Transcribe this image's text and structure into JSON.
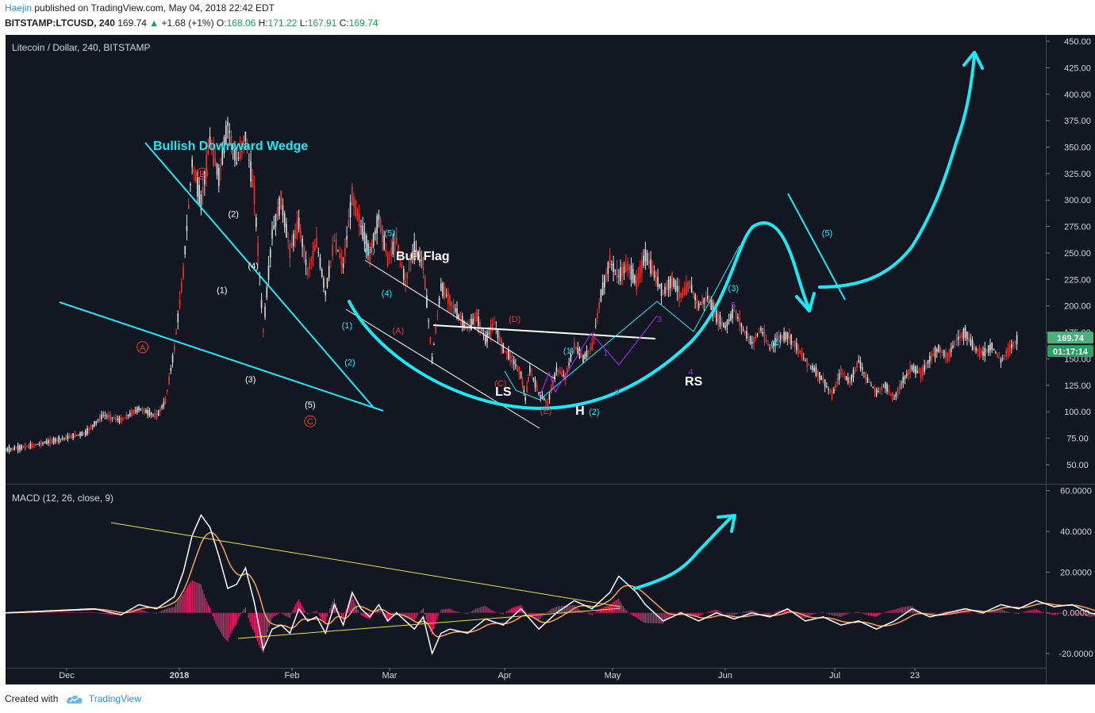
{
  "header": {
    "author": "Haejin",
    "published_text": "published on TradingView.com, May 04, 2018 22:42 EDT",
    "symbol": "BITSTAMP:LTCUSD, 240",
    "last": "169.74",
    "change_arrow": "▲",
    "change": "+1.68 (+1%)",
    "ohlc": [
      {
        "label": "O:",
        "value": "168.06"
      },
      {
        "label": "H:",
        "value": "171.22"
      },
      {
        "label": "L:",
        "value": "167.91"
      },
      {
        "label": "C:",
        "value": "169.74"
      }
    ]
  },
  "footer": {
    "created_with": "Created with",
    "brand": "TradingView",
    "logo_icon": "tradingview-cloud-icon"
  },
  "colors": {
    "cyan": "#1de9f5",
    "red_label": "#e53935",
    "purple": "#9c27d9",
    "macd_hist": "#f0266f",
    "macd_signal": "#f5a25d",
    "trendline_yellow": "#e8e23a",
    "price_tag": "#4caf7c",
    "price_tag_dark": "#26a269",
    "wedge_title": "#1de9f5"
  },
  "chart_data": [
    {
      "type": "line",
      "pane": "price",
      "title": "Litecoin / Dollar, 240, BITSTAMP",
      "x_axis_labels": [
        "Dec",
        "2018",
        "Feb",
        "Mar",
        "Apr",
        "May",
        "Jun",
        "Jul",
        "23"
      ],
      "y_ticks": [
        50,
        75,
        100,
        125,
        150,
        175,
        200,
        225,
        250,
        275,
        300,
        325,
        350,
        375,
        400,
        425,
        450
      ],
      "ylim": [
        32,
        456
      ],
      "last_price": "169.74",
      "countdown": "01:17:14",
      "price_path": [
        [
          0,
          64
        ],
        [
          6,
          68
        ],
        [
          12,
          74
        ],
        [
          18,
          80
        ],
        [
          22,
          97
        ],
        [
          26,
          92
        ],
        [
          30,
          103
        ],
        [
          34,
          96
        ],
        [
          36,
          110
        ],
        [
          38,
          160
        ],
        [
          40,
          232
        ],
        [
          42,
          335
        ],
        [
          44,
          298
        ],
        [
          46,
          356
        ],
        [
          48,
          322
        ],
        [
          50,
          372
        ],
        [
          52,
          335
        ],
        [
          54,
          360
        ],
        [
          56,
          305
        ],
        [
          58,
          176
        ],
        [
          60,
          268
        ],
        [
          62,
          300
        ],
        [
          64,
          252
        ],
        [
          66,
          278
        ],
        [
          68,
          232
        ],
        [
          70,
          260
        ],
        [
          72,
          212
        ],
        [
          74,
          262
        ],
        [
          76,
          238
        ],
        [
          78,
          304
        ],
        [
          80,
          275
        ],
        [
          82,
          248
        ],
        [
          84,
          284
        ],
        [
          86,
          244
        ],
        [
          88,
          262
        ],
        [
          90,
          222
        ],
        [
          92,
          255
        ],
        [
          94,
          240
        ],
        [
          96,
          150
        ],
        [
          98,
          218
        ],
        [
          100,
          205
        ],
        [
          102,
          190
        ],
        [
          104,
          178
        ],
        [
          106,
          190
        ],
        [
          108,
          168
        ],
        [
          110,
          183
        ],
        [
          112,
          160
        ],
        [
          114,
          150
        ],
        [
          116,
          135
        ],
        [
          117,
          112
        ],
        [
          118,
          140
        ],
        [
          120,
          118
        ],
        [
          122,
          108
        ],
        [
          124,
          140
        ],
        [
          126,
          133
        ],
        [
          128,
          163
        ],
        [
          130,
          150
        ],
        [
          132,
          162
        ],
        [
          134,
          210
        ],
        [
          136,
          242
        ],
        [
          138,
          228
        ],
        [
          140,
          238
        ],
        [
          142,
          222
        ],
        [
          144,
          248
        ],
        [
          146,
          230
        ],
        [
          148,
          212
        ],
        [
          150,
          225
        ],
        [
          152,
          210
        ],
        [
          154,
          220
        ],
        [
          156,
          200
        ],
        [
          158,
          208
        ],
        [
          160,
          190
        ],
        [
          162,
          180
        ],
        [
          164,
          196
        ],
        [
          166,
          178
        ],
        [
          168,
          165
        ],
        [
          170,
          178
        ],
        [
          172,
          160
        ],
        [
          174,
          170
        ],
        [
          176,
          172
        ],
        [
          178,
          162
        ],
        [
          180,
          148
        ],
        [
          182,
          140
        ],
        [
          184,
          130
        ],
        [
          186,
          115
        ],
        [
          188,
          138
        ],
        [
          190,
          128
        ],
        [
          192,
          148
        ],
        [
          194,
          130
        ],
        [
          196,
          118
        ],
        [
          198,
          125
        ],
        [
          200,
          112
        ],
        [
          202,
          130
        ],
        [
          204,
          142
        ],
        [
          206,
          135
        ],
        [
          208,
          150
        ],
        [
          210,
          160
        ],
        [
          212,
          152
        ],
        [
          214,
          168
        ],
        [
          216,
          175
        ],
        [
          218,
          160
        ],
        [
          220,
          155
        ],
        [
          222,
          162
        ],
        [
          224,
          148
        ],
        [
          226,
          160
        ],
        [
          228,
          170
        ]
      ],
      "wave_labels": [
        {
          "text": "A",
          "x": 58,
          "y": 158,
          "color": "red_label",
          "circled": true
        },
        {
          "text": "B",
          "x": 79,
          "y": 322,
          "color": "red_label",
          "circled": true
        },
        {
          "text": "C",
          "x": 117,
          "y": 88,
          "color": "red_label",
          "circled": true
        },
        {
          "text": "(2)",
          "x": 90,
          "y": 284,
          "color": "white"
        },
        {
          "text": "(1)",
          "x": 86,
          "y": 212,
          "color": "white"
        },
        {
          "text": "(4)",
          "x": 97,
          "y": 235,
          "color": "white"
        },
        {
          "text": "(3)",
          "x": 96,
          "y": 128,
          "color": "white"
        },
        {
          "text": "(5)",
          "x": 117,
          "y": 104,
          "color": "white"
        },
        {
          "text": "(1)",
          "x": 130,
          "y": 179,
          "color": "cyan"
        },
        {
          "text": "(2)",
          "x": 131,
          "y": 144,
          "color": "cyan"
        },
        {
          "text": "(3)",
          "x": 138,
          "y": 250,
          "color": "cyan"
        },
        {
          "text": "(4)",
          "x": 144,
          "y": 209,
          "color": "cyan"
        },
        {
          "text": "(5)",
          "x": 145,
          "y": 266,
          "color": "cyan"
        },
        {
          "text": "(A)",
          "x": 148,
          "y": 174,
          "color": "red_label"
        },
        {
          "text": "(B)",
          "x": 154,
          "y": 245,
          "color": "red_label"
        },
        {
          "text": "(C)",
          "x": 184,
          "y": 124,
          "color": "red_label"
        },
        {
          "text": "(D)",
          "x": 189,
          "y": 185,
          "color": "red_label"
        },
        {
          "text": "(E)",
          "x": 200,
          "y": 98,
          "color": "red_label"
        },
        {
          "text": "LS",
          "x": 185,
          "y": 115,
          "color": "white",
          "big": true
        },
        {
          "text": "H",
          "x": 212,
          "y": 97,
          "color": "white",
          "big": true
        },
        {
          "text": "RS",
          "x": 252,
          "y": 125,
          "color": "white",
          "big": true
        },
        {
          "text": "(1)",
          "x": 208,
          "y": 155,
          "color": "cyan"
        },
        {
          "text": "(2)",
          "x": 217,
          "y": 97,
          "color": "cyan"
        },
        {
          "text": "(3)",
          "x": 266,
          "y": 214,
          "color": "cyan"
        },
        {
          "text": "(4)",
          "x": 281,
          "y": 162,
          "color": "cyan"
        },
        {
          "text": "(5)",
          "x": 299,
          "y": 266,
          "color": "cyan"
        },
        {
          "text": "1",
          "x": 221,
          "y": 153,
          "color": "purple"
        },
        {
          "text": "2",
          "x": 225,
          "y": 116,
          "color": "purple"
        },
        {
          "text": "3",
          "x": 240,
          "y": 185,
          "color": "purple"
        },
        {
          "text": "4",
          "x": 251,
          "y": 135,
          "color": "purple"
        },
        {
          "text": "5",
          "x": 266,
          "y": 198,
          "color": "purple"
        }
      ],
      "annotations": [
        {
          "text": "Bullish Downward Wedge",
          "color": "cyan"
        },
        {
          "text": "Bull Flag",
          "color": "white"
        }
      ]
    },
    {
      "type": "line",
      "pane": "indicator",
      "title": "MACD (12, 26, close, 9)",
      "y_ticks": [
        -20,
        0,
        20,
        40,
        60
      ],
      "y_tick_labels": [
        "-20.0000",
        "0.0000",
        "20.0000",
        "40.0000",
        "60.0000"
      ],
      "ylim": [
        -27,
        63
      ],
      "macd_path": [
        [
          0,
          0
        ],
        [
          10,
          1
        ],
        [
          20,
          2
        ],
        [
          26,
          -1
        ],
        [
          30,
          4
        ],
        [
          34,
          2
        ],
        [
          38,
          8
        ],
        [
          40,
          20
        ],
        [
          42,
          38
        ],
        [
          44,
          48
        ],
        [
          46,
          42
        ],
        [
          48,
          28
        ],
        [
          50,
          12
        ],
        [
          52,
          14
        ],
        [
          54,
          22
        ],
        [
          56,
          5
        ],
        [
          58,
          -18
        ],
        [
          60,
          -8
        ],
        [
          62,
          -6
        ],
        [
          64,
          -10
        ],
        [
          66,
          2
        ],
        [
          68,
          -4
        ],
        [
          70,
          -2
        ],
        [
          72,
          -10
        ],
        [
          74,
          4
        ],
        [
          76,
          -6
        ],
        [
          78,
          10
        ],
        [
          80,
          2
        ],
        [
          82,
          -2
        ],
        [
          84,
          4
        ],
        [
          86,
          -4
        ],
        [
          88,
          0
        ],
        [
          92,
          -8
        ],
        [
          94,
          -2
        ],
        [
          96,
          -20
        ],
        [
          98,
          -10
        ],
        [
          100,
          -8
        ],
        [
          104,
          -10
        ],
        [
          108,
          -3
        ],
        [
          112,
          -6
        ],
        [
          116,
          2
        ],
        [
          120,
          -8
        ],
        [
          124,
          0
        ],
        [
          128,
          6
        ],
        [
          132,
          2
        ],
        [
          136,
          10
        ],
        [
          138,
          18
        ],
        [
          140,
          14
        ],
        [
          142,
          10
        ],
        [
          144,
          4
        ],
        [
          148,
          -4
        ],
        [
          152,
          0
        ],
        [
          156,
          -4
        ],
        [
          160,
          0
        ],
        [
          164,
          -3
        ],
        [
          168,
          0
        ],
        [
          172,
          -2
        ],
        [
          176,
          2
        ],
        [
          180,
          -4
        ],
        [
          184,
          -2
        ],
        [
          188,
          -6
        ],
        [
          192,
          -4
        ],
        [
          196,
          -8
        ],
        [
          200,
          -4
        ],
        [
          204,
          2
        ],
        [
          208,
          -2
        ],
        [
          212,
          0
        ],
        [
          216,
          2
        ],
        [
          220,
          0
        ],
        [
          224,
          4
        ],
        [
          228,
          2
        ],
        [
          232,
          6
        ],
        [
          236,
          3
        ],
        [
          240,
          4
        ],
        [
          244,
          0
        ],
        [
          248,
          -2
        ],
        [
          252,
          0
        ],
        [
          256,
          1
        ],
        [
          260,
          4
        ]
      ]
    }
  ]
}
